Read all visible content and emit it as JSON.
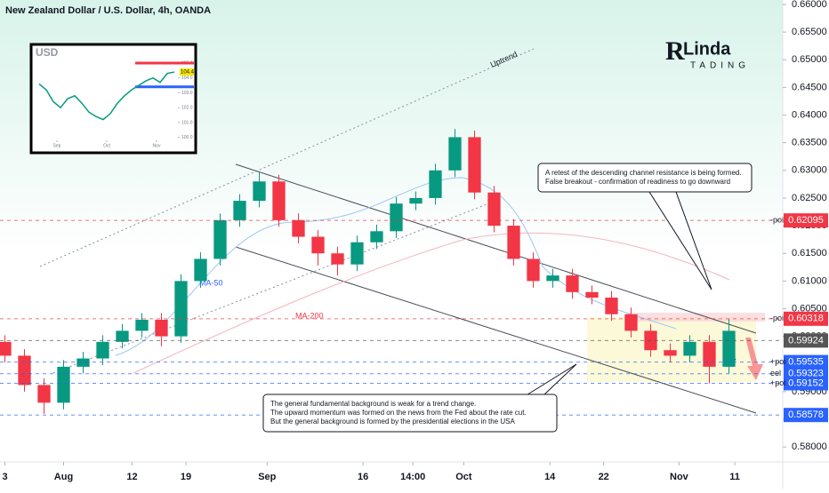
{
  "chart_data": [
    {
      "type": "candlestick",
      "title": "New Zealand Dollar / U.S. Dollar, 4h, OANDA",
      "up_color": "#089981",
      "down_color": "#f23645",
      "x": [
        0.5,
        2.5,
        4.5,
        6.5,
        8.5,
        10.5,
        12.5,
        14.5,
        16.5,
        18.5,
        20.5,
        22.5,
        24.5,
        26.5,
        28.5,
        30.5,
        32.5,
        34.5,
        36.5,
        38.5,
        40.5,
        42.5,
        44.5,
        46.5,
        48.5,
        50.5,
        52.5,
        54.5,
        56.5,
        58.5,
        60.5,
        62.5,
        64.5,
        66.5,
        68.5,
        70.5,
        72.5,
        74.5
      ],
      "open": [
        0.599,
        0.5965,
        0.5912,
        0.588,
        0.5945,
        0.596,
        0.599,
        0.601,
        0.603,
        0.6,
        0.61,
        0.614,
        0.621,
        0.6245,
        0.628,
        0.621,
        0.618,
        0.615,
        0.613,
        0.617,
        0.619,
        0.624,
        0.625,
        0.63,
        0.636,
        0.626,
        0.62,
        0.614,
        0.61,
        0.611,
        0.608,
        0.607,
        0.604,
        0.601,
        0.5975,
        0.5965,
        0.599,
        0.5945
      ],
      "high": [
        0.6002,
        0.5977,
        0.5924,
        0.5957,
        0.5972,
        0.6002,
        0.6022,
        0.6042,
        0.6042,
        0.6112,
        0.6152,
        0.6222,
        0.6257,
        0.6298,
        0.6292,
        0.6222,
        0.6192,
        0.6162,
        0.6182,
        0.6202,
        0.6252,
        0.6262,
        0.6312,
        0.6375,
        0.6372,
        0.6272,
        0.6212,
        0.6152,
        0.6122,
        0.6122,
        0.6092,
        0.6082,
        0.6052,
        0.6022,
        0.5987,
        0.6002,
        0.6002,
        0.6032
      ],
      "low": [
        0.5953,
        0.59,
        0.586,
        0.5868,
        0.5933,
        0.5948,
        0.5978,
        0.5998,
        0.5982,
        0.5988,
        0.6088,
        0.6128,
        0.6198,
        0.6233,
        0.6198,
        0.6168,
        0.6128,
        0.611,
        0.6118,
        0.6158,
        0.6178,
        0.6228,
        0.6238,
        0.6288,
        0.6248,
        0.6188,
        0.6128,
        0.6088,
        0.6088,
        0.6068,
        0.6058,
        0.6028,
        0.5998,
        0.5963,
        0.5953,
        0.5953,
        0.5915,
        0.5933
      ],
      "close": [
        0.5965,
        0.5912,
        0.588,
        0.5945,
        0.596,
        0.599,
        0.601,
        0.603,
        0.6,
        0.61,
        0.614,
        0.621,
        0.6245,
        0.628,
        0.621,
        0.618,
        0.615,
        0.613,
        0.617,
        0.619,
        0.624,
        0.625,
        0.63,
        0.636,
        0.626,
        0.62,
        0.614,
        0.61,
        0.611,
        0.608,
        0.607,
        0.604,
        0.601,
        0.5975,
        0.5965,
        0.599,
        0.5945,
        0.601
      ],
      "xlim": [
        0,
        80
      ],
      "xticks": [
        {
          "value": 0.5,
          "label": "3"
        },
        {
          "value": 6.5,
          "label": "Aug"
        },
        {
          "value": 13.5,
          "label": "12"
        },
        {
          "value": 19,
          "label": "19"
        },
        {
          "value": 27.3,
          "label": "Sep"
        },
        {
          "value": 37.1,
          "label": "16"
        },
        {
          "value": 42.2,
          "label": "14:00"
        },
        {
          "value": 47.4,
          "label": "Oct"
        },
        {
          "value": 56.2,
          "label": "14"
        },
        {
          "value": 61.7,
          "label": "22"
        },
        {
          "value": 69.4,
          "label": "Nov"
        },
        {
          "value": 75.1,
          "label": "11"
        }
      ],
      "ylim": [
        0.5773,
        0.6608
      ],
      "yticks": [
        {
          "value": 0.58,
          "label": "0.58000"
        },
        {
          "value": 0.585,
          "label": "0.58500"
        },
        {
          "value": 0.59,
          "label": "0.59000"
        },
        {
          "value": 0.595,
          "label": "0.59500"
        },
        {
          "value": 0.6,
          "label": "0.60000"
        },
        {
          "value": 0.605,
          "label": "0.60500"
        },
        {
          "value": 0.61,
          "label": "0.61000"
        },
        {
          "value": 0.615,
          "label": "0.61500"
        },
        {
          "value": 0.62,
          "label": "0.62000"
        },
        {
          "value": 0.625,
          "label": "0.62500"
        },
        {
          "value": 0.63,
          "label": "0.63000"
        },
        {
          "value": 0.635,
          "label": "0.63500"
        },
        {
          "value": 0.64,
          "label": "0.64000"
        },
        {
          "value": 0.645,
          "label": "0.64500"
        },
        {
          "value": 0.65,
          "label": "0.65000"
        },
        {
          "value": 0.655,
          "label": "0.65500"
        },
        {
          "value": 0.66,
          "label": "0.66000"
        }
      ],
      "levels": [
        {
          "value": 0.62095,
          "tag": "-poi",
          "color": "#f23645"
        },
        {
          "value": 0.60318,
          "tag": "-poi",
          "color": "#f23645"
        },
        {
          "value": 0.59924,
          "color": "#555555"
        },
        {
          "value": 0.59535,
          "tag": "+poi",
          "color": "#2962ff"
        },
        {
          "value": 0.59323,
          "tag": "eel",
          "color": "#2962ff"
        },
        {
          "value": 0.59152,
          "tag": "+poi",
          "color": "#2962ff"
        },
        {
          "value": 0.58578,
          "color": "#2962ff"
        }
      ],
      "annotations": {
        "uptrend": "Uptrend",
        "ma50": "MA-50",
        "ma200": "MA-200",
        "note_top": [
          "A retest of the descending channel resistance is being formed.",
          "False breakout - confirmation of readiness to go downward"
        ],
        "note_bottom": [
          "The general fundamental background is weak for a trend change.",
          "The upward momentum was formed on the news from the Fed about the rate cut.",
          "But the general background is formed by the presidential elections in the USA"
        ]
      },
      "logo": {
        "name": "Linda",
        "initial": "R",
        "sub": "TADING"
      }
    },
    {
      "type": "line",
      "title": "USD",
      "color": "#089981",
      "values": [
        103.6,
        103.2,
        102.4,
        102.0,
        102.6,
        102.8,
        102.3,
        101.7,
        101.4,
        101.2,
        101.6,
        102.3,
        102.8,
        103.2,
        103.5,
        103.8,
        104.0,
        103.7,
        104.3,
        104.4
      ],
      "xlim": [
        0,
        20
      ],
      "xticks": [
        {
          "value": 3,
          "label": "Sep"
        },
        {
          "value": 10,
          "label": "Oct"
        },
        {
          "value": 17,
          "label": "Nov"
        }
      ],
      "ylim": [
        99.8,
        105.3
      ],
      "yticks": [
        {
          "value": 100,
          "label": "100.0"
        },
        {
          "value": 101,
          "label": "101.0"
        },
        {
          "value": 102,
          "label": "102.0"
        },
        {
          "value": 103,
          "label": "103.0"
        },
        {
          "value": 104,
          "label": "104.0"
        },
        {
          "value": 105,
          "label": "105.0"
        }
      ],
      "levels": [
        {
          "value": 105.0,
          "color": "#f23645"
        },
        {
          "value": 103.4,
          "color": "#2962ff"
        }
      ],
      "last_value": 104.4
    }
  ]
}
